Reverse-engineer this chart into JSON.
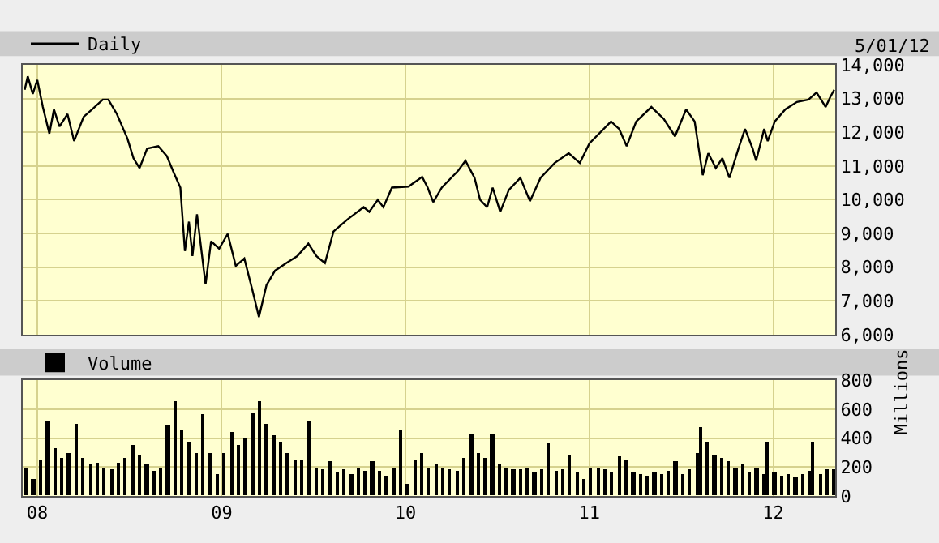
{
  "chart_data": [
    {
      "type": "line",
      "legend": "top left",
      "grid": true,
      "marker": "none",
      "line_style": "solid",
      "tick_labels": "y",
      "annotations": [
        "5/01/12"
      ],
      "xlim": [
        "2007-12-03",
        "2012-05-03"
      ],
      "xticks": [
        {
          "value": "2008-01-01",
          "label": null
        },
        {
          "value": "2009-01-01",
          "label": null
        },
        {
          "value": "2010-01-01",
          "label": null
        },
        {
          "value": "2011-01-01",
          "label": null
        },
        {
          "value": "2012-01-01",
          "label": null
        }
      ],
      "ylim": [
        6000,
        14000
      ],
      "yticks": [
        {
          "value": 6000,
          "label": "6,000"
        },
        {
          "value": 7000,
          "label": "7,000"
        },
        {
          "value": 8000,
          "label": "8,000"
        },
        {
          "value": 9000,
          "label": "9,000"
        },
        {
          "value": 10000,
          "label": "10,000"
        },
        {
          "value": 11000,
          "label": "11,000"
        },
        {
          "value": 12000,
          "label": "12,000"
        },
        {
          "value": 13000,
          "label": "13,000"
        },
        {
          "value": 14000,
          "label": "14,000"
        }
      ],
      "series": [
        {
          "name": "Daily",
          "color": "#000000",
          "x": [
            "2007-12-07",
            "2007-12-13",
            "2007-12-23",
            "2008-01-01",
            "2008-01-12",
            "2008-01-25",
            "2008-02-03",
            "2008-02-14",
            "2008-03-01",
            "2008-03-14",
            "2008-04-02",
            "2008-04-19",
            "2008-05-10",
            "2008-05-21",
            "2008-06-07",
            "2008-06-28",
            "2008-07-10",
            "2008-07-22",
            "2008-08-06",
            "2008-08-28",
            "2008-09-14",
            "2008-09-28",
            "2008-10-11",
            "2008-10-20",
            "2008-10-28",
            "2008-11-04",
            "2008-11-13",
            "2008-11-30",
            "2008-12-11",
            "2008-12-27",
            "2009-01-13",
            "2009-01-29",
            "2009-02-15",
            "2009-03-03",
            "2009-03-16",
            "2009-03-31",
            "2009-04-17",
            "2009-05-09",
            "2009-05-31",
            "2009-06-22",
            "2009-07-08",
            "2009-07-25",
            "2009-08-11",
            "2009-09-08",
            "2009-10-10",
            "2009-10-21",
            "2009-11-07",
            "2009-11-18",
            "2009-12-05",
            "2010-01-07",
            "2010-02-03",
            "2010-02-14",
            "2010-02-25",
            "2010-03-14",
            "2010-04-16",
            "2010-04-30",
            "2010-05-18",
            "2010-05-29",
            "2010-06-12",
            "2010-06-23",
            "2010-07-08",
            "2010-07-25",
            "2010-08-17",
            "2010-09-05",
            "2010-09-26",
            "2010-10-24",
            "2010-11-21",
            "2010-12-13",
            "2011-01-01",
            "2011-02-13",
            "2011-03-01",
            "2011-03-16",
            "2011-04-04",
            "2011-05-04",
            "2011-05-29",
            "2011-06-20",
            "2011-07-12",
            "2011-07-29",
            "2011-08-14",
            "2011-08-25",
            "2011-09-09",
            "2011-09-22",
            "2011-10-06",
            "2011-10-24",
            "2011-11-06",
            "2011-11-21",
            "2011-11-28",
            "2011-12-14",
            "2011-12-21",
            "2012-01-04",
            "2012-01-25",
            "2012-02-17",
            "2012-03-11",
            "2012-03-27",
            "2012-04-14",
            "2012-04-23",
            "2012-05-01"
          ],
          "values": [
            13260,
            13660,
            13140,
            13550,
            12750,
            11960,
            12680,
            12170,
            12540,
            11740,
            12460,
            12680,
            12970,
            12970,
            12540,
            11810,
            11230,
            10940,
            11520,
            11590,
            11300,
            10800,
            10360,
            8480,
            9350,
            8330,
            9570,
            7490,
            8770,
            8550,
            8990,
            8040,
            8260,
            7320,
            6520,
            7470,
            7900,
            8120,
            8330,
            8700,
            8330,
            8120,
            9060,
            9420,
            9780,
            9640,
            10000,
            9780,
            10360,
            10390,
            10680,
            10360,
            9930,
            10360,
            10870,
            11160,
            10650,
            10000,
            9780,
            10360,
            9640,
            10290,
            10650,
            9960,
            10650,
            11090,
            11380,
            11090,
            11670,
            12320,
            12100,
            11590,
            12320,
            12750,
            12390,
            11880,
            12680,
            12320,
            10730,
            11380,
            10940,
            11230,
            10650,
            11520,
            12100,
            11520,
            11160,
            12100,
            11740,
            12320,
            12680,
            12900,
            12970,
            13180,
            12750,
            13040,
            13260
          ]
        }
      ]
    },
    {
      "type": "bar",
      "legend": "top left",
      "grid": true,
      "ylabel": "Millions",
      "xlim": [
        "2007-12-03",
        "2012-05-03"
      ],
      "xticks": [
        {
          "value": "2008-01-01",
          "label": "08"
        },
        {
          "value": "2009-01-01",
          "label": "09"
        },
        {
          "value": "2010-01-01",
          "label": "10"
        },
        {
          "value": "2011-01-01",
          "label": "11"
        },
        {
          "value": "2012-01-01",
          "label": "12"
        }
      ],
      "ylim": [
        0,
        800
      ],
      "yticks": [
        0,
        200,
        400,
        600,
        800
      ],
      "series": [
        {
          "name": "Volume",
          "color": "#000000",
          "x": [
            "2007-12-10",
            "2007-12-24",
            "2008-01-08",
            "2008-01-22",
            "2008-02-05",
            "2008-02-19",
            "2008-03-04",
            "2008-03-18",
            "2008-04-01",
            "2008-04-15",
            "2008-04-29",
            "2008-05-13",
            "2008-05-27",
            "2008-06-10",
            "2008-06-24",
            "2008-07-08",
            "2008-07-22",
            "2008-08-05",
            "2008-08-19",
            "2008-09-02",
            "2008-09-16",
            "2008-09-30",
            "2008-10-14",
            "2008-10-28",
            "2008-11-11",
            "2008-11-25",
            "2008-12-09",
            "2008-12-23",
            "2009-01-06",
            "2009-01-20",
            "2009-02-03",
            "2009-02-17",
            "2009-03-03",
            "2009-03-17",
            "2009-03-31",
            "2009-04-14",
            "2009-04-28",
            "2009-05-12",
            "2009-05-26",
            "2009-06-09",
            "2009-06-23",
            "2009-07-07",
            "2009-07-21",
            "2009-08-04",
            "2009-08-18",
            "2009-09-01",
            "2009-09-15",
            "2009-09-29",
            "2009-10-13",
            "2009-10-27",
            "2009-11-10",
            "2009-11-24",
            "2009-12-08",
            "2009-12-22",
            "2010-01-05",
            "2010-01-19",
            "2010-02-02",
            "2010-02-16",
            "2010-03-02",
            "2010-03-16",
            "2010-03-30",
            "2010-04-13",
            "2010-04-27",
            "2010-05-11",
            "2010-05-25",
            "2010-06-08",
            "2010-06-22",
            "2010-07-06",
            "2010-07-20",
            "2010-08-03",
            "2010-08-17",
            "2010-08-31",
            "2010-09-14",
            "2010-09-28",
            "2010-10-12",
            "2010-10-26",
            "2010-11-09",
            "2010-11-23",
            "2010-12-07",
            "2010-12-21",
            "2011-01-04",
            "2011-01-18",
            "2011-02-01",
            "2011-02-15",
            "2011-03-01",
            "2011-03-15",
            "2011-03-29",
            "2011-04-12",
            "2011-04-26",
            "2011-05-10",
            "2011-05-24",
            "2011-06-07",
            "2011-06-21",
            "2011-07-05",
            "2011-07-19",
            "2011-08-02",
            "2011-08-09",
            "2011-08-23",
            "2011-09-06",
            "2011-09-20",
            "2011-10-04",
            "2011-10-18",
            "2011-11-01",
            "2011-11-15",
            "2011-11-29",
            "2011-12-13",
            "2011-12-20",
            "2012-01-03",
            "2012-01-17",
            "2012-01-31",
            "2012-02-14",
            "2012-02-28",
            "2012-03-13",
            "2012-03-20",
            "2012-04-03",
            "2012-04-17",
            "2012-05-01"
          ],
          "values": [
            200,
            120,
            250,
            520,
            330,
            260,
            300,
            500,
            260,
            220,
            230,
            200,
            190,
            230,
            260,
            350,
            280,
            220,
            170,
            200,
            490,
            660,
            450,
            380,
            300,
            560,
            300,
            150,
            300,
            440,
            350,
            400,
            580,
            660,
            500,
            420,
            380,
            300,
            250,
            250,
            520,
            200,
            180,
            240,
            160,
            180,
            150,
            200,
            170,
            240,
            170,
            140,
            200,
            450,
            80,
            250,
            300,
            200,
            220,
            200,
            180,
            170,
            260,
            430,
            300,
            260,
            430,
            220,
            200,
            180,
            180,
            200,
            160,
            180,
            360,
            170,
            180,
            280,
            160,
            120,
            200,
            200,
            180,
            160,
            270,
            250,
            160,
            150,
            140,
            160,
            150,
            170,
            240,
            150,
            180,
            300,
            480,
            380,
            280,
            260,
            240,
            200,
            220,
            160,
            200,
            150,
            380,
            160,
            140,
            150,
            130,
            150,
            170,
            380,
            150,
            190,
            190
          ]
        }
      ]
    }
  ]
}
